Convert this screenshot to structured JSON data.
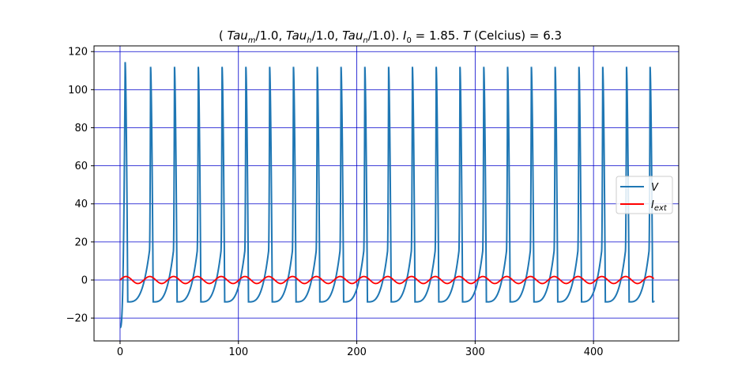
{
  "chart_data": {
    "type": "line",
    "title": {
      "open": "( ",
      "tau_m_base": "Tau",
      "tau_m_sub": "m",
      "tau_m_rest": "/1.0, ",
      "tau_h_base": "Tau",
      "tau_h_sub": "h",
      "tau_h_rest": "/1.0, ",
      "tau_n_base": "Tau",
      "tau_n_sub": "n",
      "tau_n_rest": "/1.0). ",
      "i0_base": "I",
      "i0_sub": "0",
      "i0_rest": " = 1.85. ",
      "t_base": "T",
      "t_rest": " (Celcius) = 6.3"
    },
    "xlim": [
      -22,
      472
    ],
    "ylim": [
      -32,
      123
    ],
    "xticks": [
      0,
      100,
      200,
      300,
      400
    ],
    "yticks": [
      -20,
      0,
      20,
      40,
      60,
      80,
      100,
      120
    ],
    "xtick_labels": [
      "0",
      "100",
      "200",
      "300",
      "400"
    ],
    "ytick_labels": [
      "−20",
      "0",
      "20",
      "40",
      "60",
      "80",
      "100",
      "120"
    ],
    "grid": true,
    "grid_color": "#0000cc",
    "legend_position": "center-right",
    "series": [
      {
        "name_base": "V",
        "name_sub": "",
        "color": "#1f77b4",
        "t_start": 0,
        "t_end": 451,
        "v_start": -25,
        "first_spike": {
          "t": 4.3,
          "peak": 114.5
        },
        "spike_times": [
          25.8,
          46.0,
          66.1,
          86.2,
          106.3,
          126.4,
          146.5,
          166.6,
          186.7,
          206.8,
          226.9,
          247.0,
          267.1,
          287.2,
          307.3,
          327.4,
          347.5,
          367.6,
          387.7,
          407.8,
          427.9,
          447.8
        ],
        "spike_peak": 112,
        "trough": -11.5,
        "pre_spike_level": 20,
        "end_value": -11.5
      },
      {
        "name_base": "I",
        "name_sub": "ext",
        "color": "#ff0000",
        "t_start": 0,
        "t_end": 451,
        "amplitude": 1.85,
        "period": 20.1,
        "phase_start": 0
      }
    ]
  }
}
